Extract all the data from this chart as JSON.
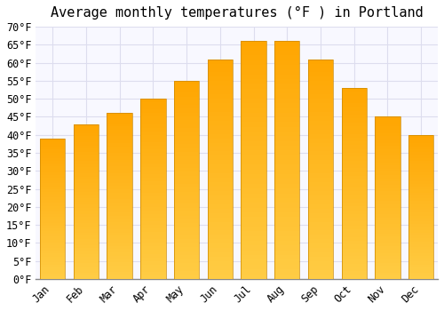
{
  "title": "Average monthly temperatures (°F ) in Portland",
  "months": [
    "Jan",
    "Feb",
    "Mar",
    "Apr",
    "May",
    "Jun",
    "Jul",
    "Aug",
    "Sep",
    "Oct",
    "Nov",
    "Dec"
  ],
  "values": [
    39,
    43,
    46,
    50,
    55,
    61,
    66,
    66,
    61,
    53,
    45,
    40
  ],
  "bar_color_top": "#FFA500",
  "bar_color_bottom": "#FFCC44",
  "bar_edge_color": "#CC8800",
  "ylim": [
    0,
    70
  ],
  "yticks": [
    0,
    5,
    10,
    15,
    20,
    25,
    30,
    35,
    40,
    45,
    50,
    55,
    60,
    65,
    70
  ],
  "background_color": "#FFFFFF",
  "plot_bg_color": "#F8F8FF",
  "grid_color": "#DDDDEE",
  "title_fontsize": 11,
  "tick_fontsize": 8.5,
  "font_family": "monospace"
}
